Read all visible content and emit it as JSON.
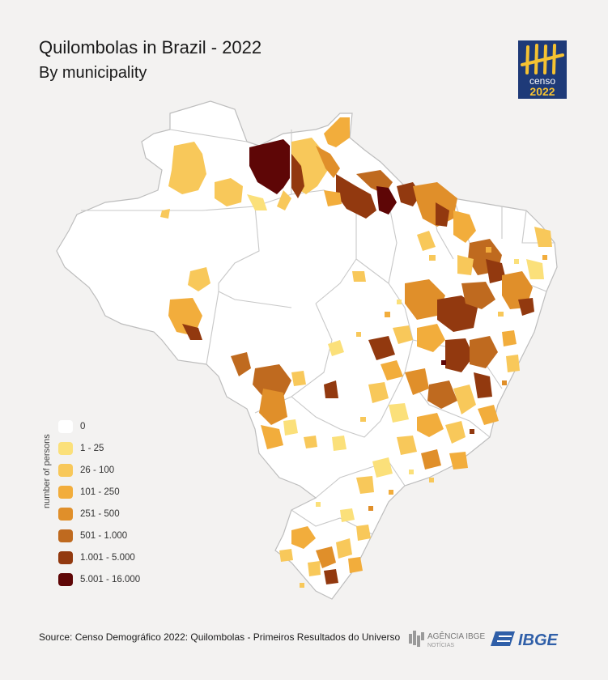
{
  "header": {
    "title": "Quilombolas in Brazil - 2022",
    "subtitle": "By municipality"
  },
  "logo": {
    "line1": "censo",
    "line2": "2022",
    "background": "#1e3a78",
    "accent": "#f5c232"
  },
  "legend": {
    "axis_title": "number of persons",
    "items": [
      {
        "label": "0",
        "color": "#ffffff"
      },
      {
        "label": "1 - 25",
        "color": "#fbe07a"
      },
      {
        "label": "26 - 100",
        "color": "#f8c85a"
      },
      {
        "label": "101 - 250",
        "color": "#f2ad3c"
      },
      {
        "label": "251 - 500",
        "color": "#e08f2a"
      },
      {
        "label": "501 - 1.000",
        "color": "#bf6a1f"
      },
      {
        "label": "1.001 - 5.000",
        "color": "#92390f"
      },
      {
        "label": "5.001 - 16.000",
        "color": "#5e0606"
      }
    ]
  },
  "map": {
    "country": "Brazil",
    "base_color": "#ffffff",
    "border_color": "#bdbdbd"
  },
  "footer": {
    "source": "Source: Censo Demográfico 2022: Quilombolas - Primeiros Resultados do Universo",
    "agencia_name": "AGÊNCIA IBGE",
    "agencia_sub": "NOTÍCIAS",
    "ibge": "IBGE"
  }
}
